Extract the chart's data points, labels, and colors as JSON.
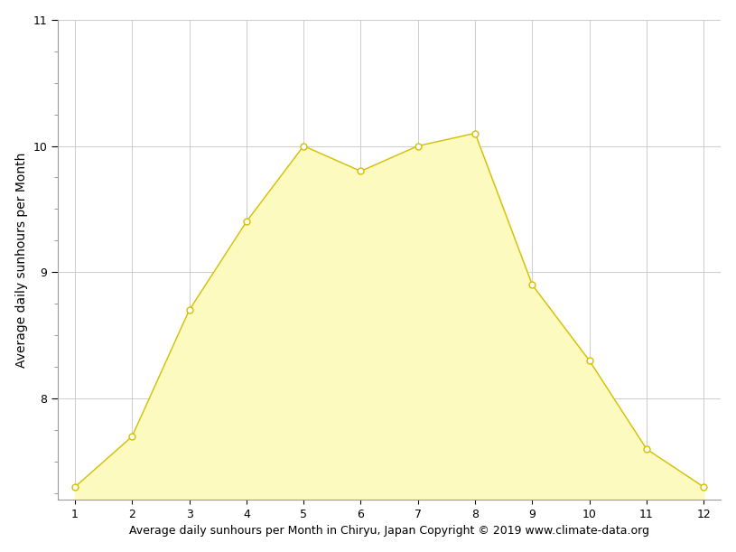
{
  "months": [
    1,
    2,
    3,
    4,
    5,
    6,
    7,
    8,
    9,
    10,
    11,
    12
  ],
  "sunhours": [
    7.3,
    7.7,
    8.7,
    9.4,
    10.0,
    9.8,
    10.0,
    10.1,
    8.9,
    8.3,
    7.6,
    7.3
  ],
  "fill_color": "#FDFAC0",
  "line_color": "#D4BE00",
  "marker_facecolor": "#FFFFFF",
  "marker_edgecolor": "#D4BE00",
  "ylabel": "Average daily sunhours per Month",
  "xlabel": "Average daily sunhours per Month in Chiryu, Japan Copyright © 2019 www.climate-data.org",
  "ylim_bottom": 7.2,
  "ylim_top": 11.0,
  "xlim_left": 0.7,
  "xlim_right": 12.3,
  "yticks": [
    8,
    9,
    10,
    11
  ],
  "xticks": [
    1,
    2,
    3,
    4,
    5,
    6,
    7,
    8,
    9,
    10,
    11,
    12
  ],
  "grid_color": "#CCCCCC",
  "bg_color": "#FFFFFF",
  "marker_size": 5,
  "line_width": 1.0,
  "ylabel_fontsize": 10,
  "xlabel_fontsize": 9,
  "tick_fontsize": 9
}
